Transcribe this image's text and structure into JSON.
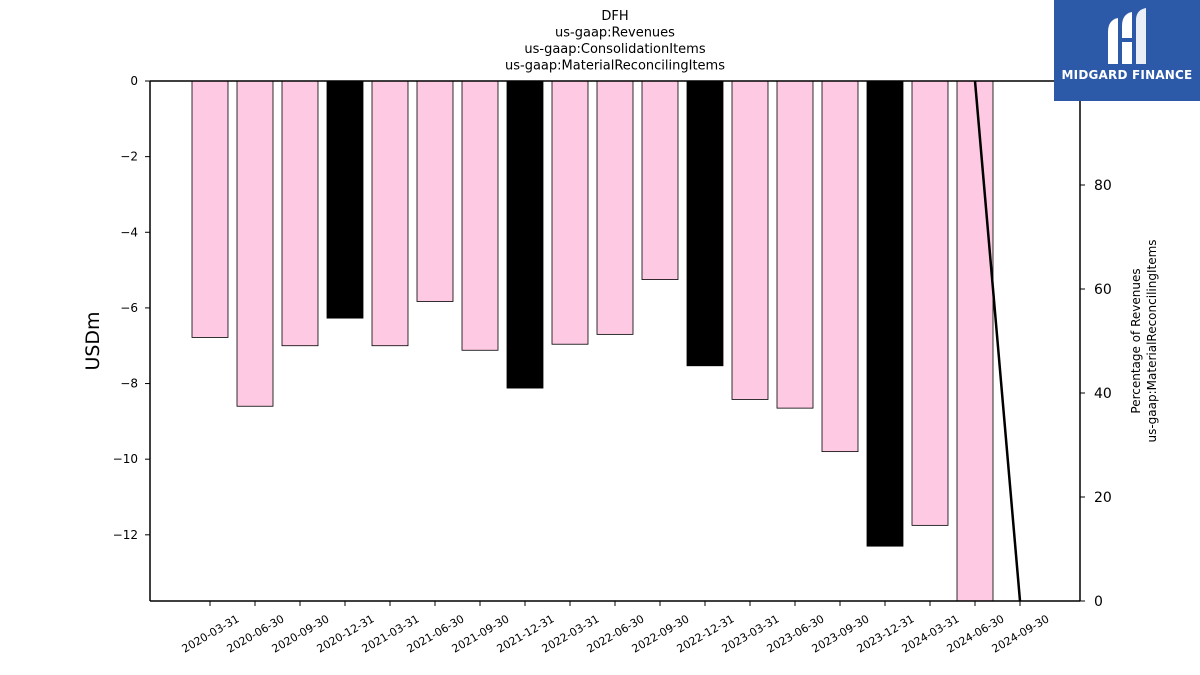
{
  "chart_data": {
    "type": "bar",
    "title_lines": [
      "DFH",
      "us-gaap:Revenues",
      "us-gaap:ConsolidationItems",
      "us-gaap:MaterialReconcilingItems"
    ],
    "ylabel": "USDm",
    "y2label_lines": [
      "Percentage of Revenues",
      "us-gaap:MaterialReconcilingItems"
    ],
    "categories": [
      "2020-03-31",
      "2020-06-30",
      "2020-09-30",
      "2020-12-31",
      "2021-03-31",
      "2021-06-30",
      "2021-09-30",
      "2021-12-31",
      "2022-03-31",
      "2022-06-30",
      "2022-09-30",
      "2022-12-31",
      "2023-03-31",
      "2023-06-30",
      "2023-09-30",
      "2023-12-31",
      "2024-03-31",
      "2024-06-30",
      "2024-09-30"
    ],
    "values": [
      -6.78,
      -8.6,
      -7.0,
      -6.27,
      -7.0,
      -5.83,
      -7.12,
      -8.12,
      -6.96,
      -6.7,
      -5.25,
      -7.53,
      -8.42,
      -8.65,
      -9.8,
      -12.3,
      -11.75,
      -13.8,
      null
    ],
    "bar_colors": [
      "#fdc9e3",
      "#fdc9e3",
      "#fdc9e3",
      "#000000",
      "#fdc9e3",
      "#fdc9e3",
      "#fdc9e3",
      "#000000",
      "#fdc9e3",
      "#fdc9e3",
      "#fdc9e3",
      "#000000",
      "#fdc9e3",
      "#fdc9e3",
      "#fdc9e3",
      "#000000",
      "#fdc9e3",
      "#fdc9e3",
      "#fdc9e3"
    ],
    "ylim": [
      -13.75,
      0
    ],
    "yticks": [
      0,
      -2,
      -4,
      -6,
      -8,
      -10,
      -12
    ],
    "ytick_labels": [
      "0",
      "−2",
      "−4",
      "−6",
      "−8",
      "−10",
      "−12"
    ],
    "y2lim": [
      0,
      100
    ],
    "y2ticks": [
      0,
      20,
      40,
      60,
      80
    ],
    "y2tick_labels": [
      "0",
      "20",
      "40",
      "60",
      "80"
    ],
    "line_series": {
      "color": "#000000",
      "points": [
        {
          "x": "2024-06-30",
          "y": 100
        },
        {
          "x": "2024-09-30",
          "y": 0
        }
      ]
    }
  },
  "logo": {
    "text": "MIDGARD FINANCE",
    "background": "#2d5aa8"
  }
}
